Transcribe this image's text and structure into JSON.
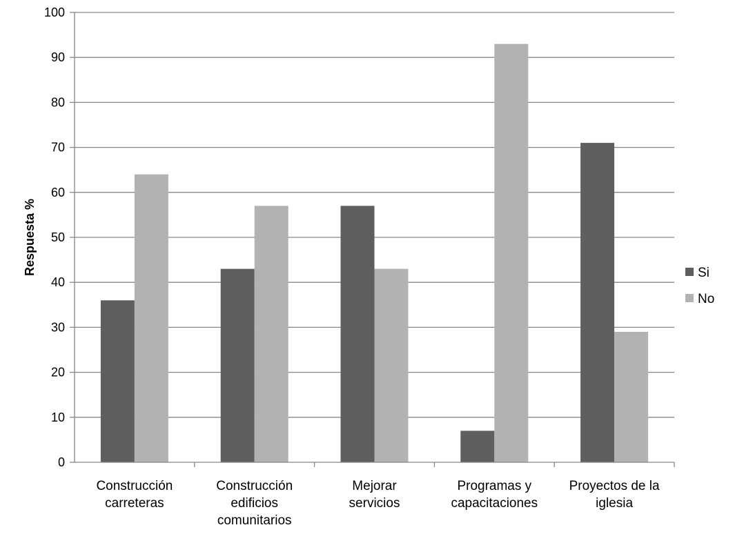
{
  "chart_data": {
    "type": "bar",
    "title": "",
    "xlabel": "",
    "ylabel": "Respuesta %",
    "ylim": [
      0,
      100
    ],
    "yticks": [
      0,
      10,
      20,
      30,
      40,
      50,
      60,
      70,
      80,
      90,
      100
    ],
    "grid": true,
    "legend_position": "right",
    "categories": [
      [
        "Construcción",
        "carreteras"
      ],
      [
        "Construcción",
        "edificios",
        "comunitarios"
      ],
      [
        "Mejorar",
        "servicios"
      ],
      [
        "Programas y",
        "capacitaciones"
      ],
      [
        "Proyectos de la",
        "iglesia"
      ]
    ],
    "series": [
      {
        "name": "Si",
        "color": "#5f5f5f",
        "values": [
          36,
          43,
          57,
          7,
          71
        ]
      },
      {
        "name": "No",
        "color": "#b2b2b2",
        "values": [
          64,
          57,
          43,
          93,
          29
        ]
      }
    ]
  }
}
